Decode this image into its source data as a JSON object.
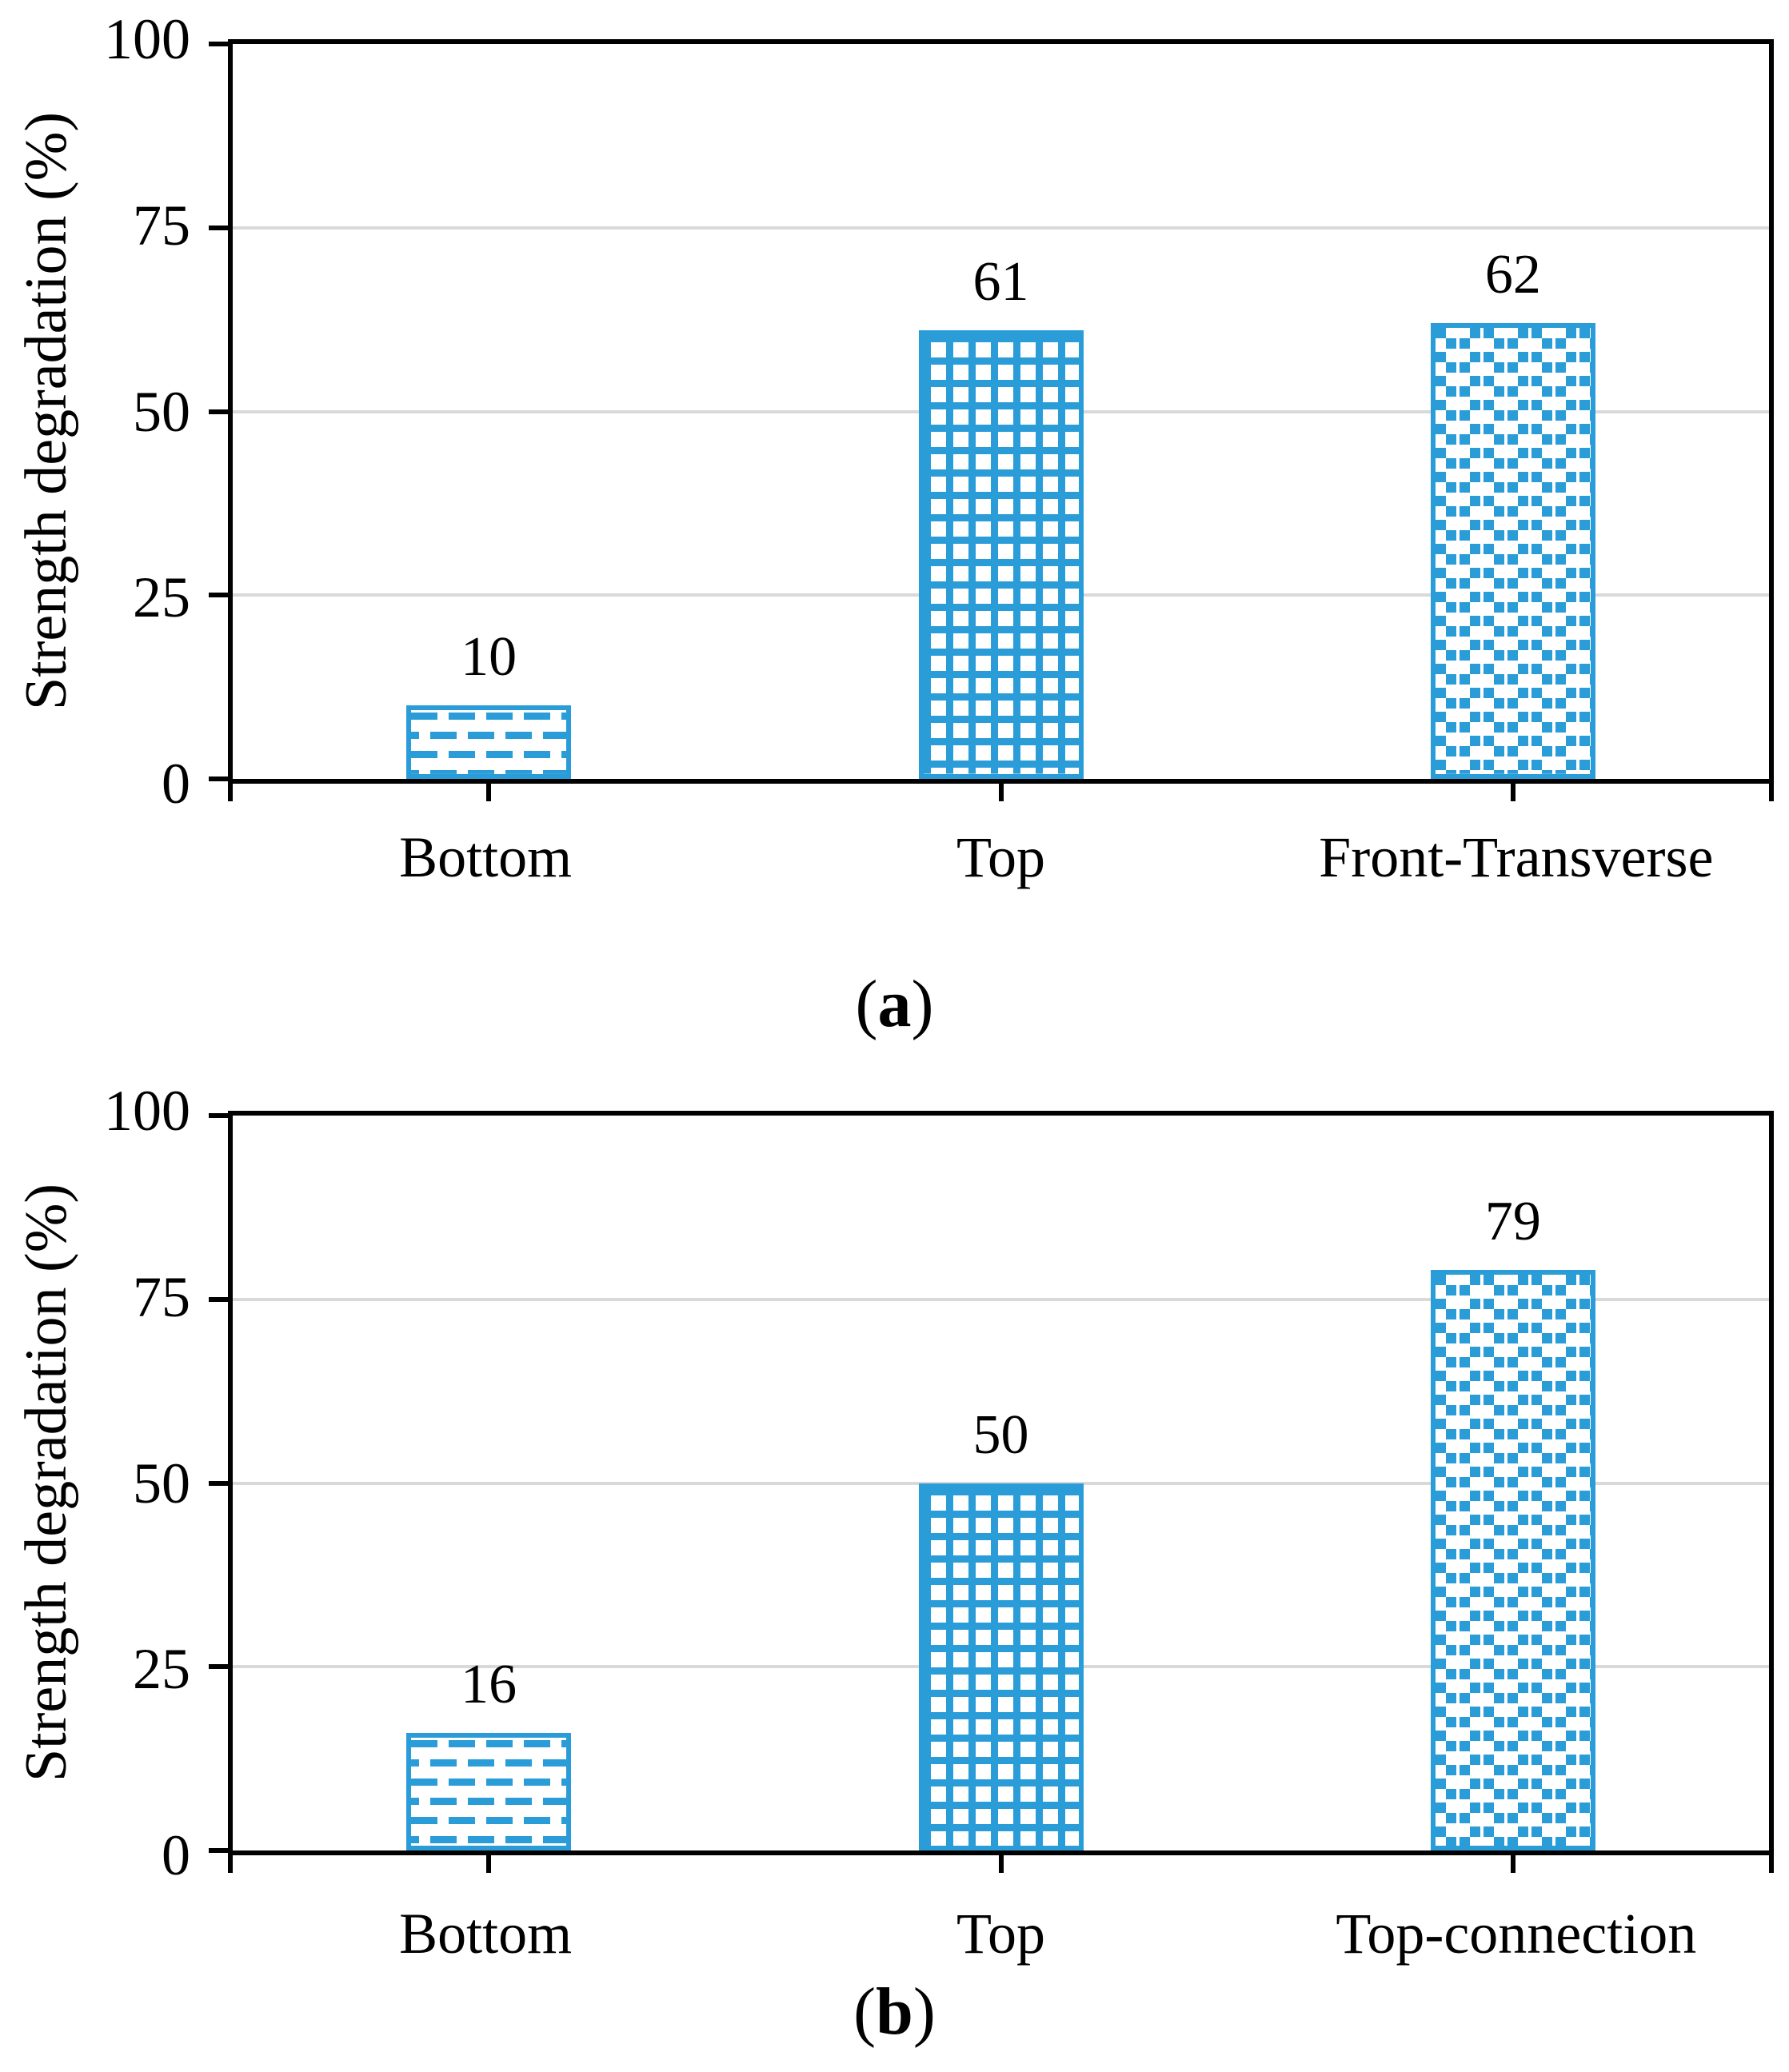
{
  "figure": {
    "background": "#FFFFFF",
    "description": "Two-panel bar chart of strength degradation percentages"
  },
  "colors": {
    "bar_blue": "#2A9DD8",
    "gridline_gray": "#D9D9D9",
    "axis_black": "#000000",
    "text_black": "#000000",
    "bar_background": "#FFFFFF"
  },
  "chart_data": [
    {
      "type": "bar",
      "panel_label": {
        "open": "(",
        "letter": "a",
        "close": ")"
      },
      "categories": [
        "Bottom",
        "Top",
        "Front-Transverse"
      ],
      "values": [
        10,
        61,
        62
      ],
      "data_labels": [
        "10",
        "61",
        "62"
      ],
      "patterns": [
        "dashed-horizontal",
        "grid-crosshatch",
        "dotted-squares"
      ],
      "ylabel": "Strength degradation (%)",
      "xlabel": "",
      "ylim": [
        0,
        100
      ],
      "y_ticks": [
        "0",
        "25",
        "50",
        "75",
        "100"
      ],
      "gridlines": [
        25,
        50,
        75
      ],
      "legend": "none",
      "bar_color": "#2A9DD8",
      "bar_fill_style": "white background with blue hatch pattern"
    },
    {
      "type": "bar",
      "panel_label": {
        "open": "(",
        "letter": "b",
        "close": ")"
      },
      "categories": [
        "Bottom",
        "Top",
        "Top-connection"
      ],
      "values": [
        16,
        50,
        79
      ],
      "data_labels": [
        "16",
        "50",
        "79"
      ],
      "patterns": [
        "dashed-horizontal",
        "grid-crosshatch",
        "dotted-squares"
      ],
      "ylabel": "Strength degradation (%)",
      "xlabel": "",
      "ylim": [
        0,
        100
      ],
      "y_ticks": [
        "0",
        "25",
        "50",
        "75",
        "100"
      ],
      "gridlines": [
        25,
        50,
        75
      ],
      "legend": "none",
      "bar_color": "#2A9DD8",
      "bar_fill_style": "white background with blue hatch pattern"
    }
  ]
}
